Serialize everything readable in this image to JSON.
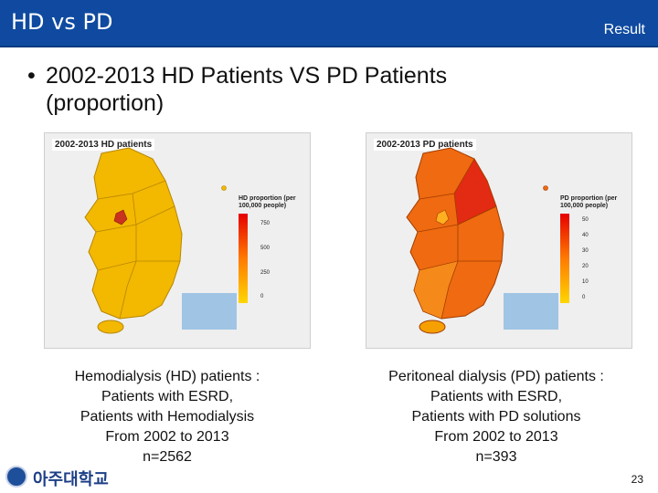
{
  "header": {
    "title": "HD vs PD",
    "section": "Result"
  },
  "bullet": {
    "text": "2002-2013 HD Patients VS PD Patients (proportion)"
  },
  "maps": {
    "hd": {
      "title": "2002-2013 HD patients",
      "legend_title": "HD proportion (per 100,000 people)",
      "ticks": [
        "750",
        "500",
        "250",
        "0"
      ]
    },
    "pd": {
      "title": "2002-2013 PD patients",
      "legend_title": "PD proportion (per 100,000 people)",
      "ticks": [
        "50",
        "40",
        "30",
        "20",
        "10",
        "0"
      ]
    }
  },
  "captions": {
    "left": [
      "Hemodialysis (HD) patients :",
      "Patients with ESRD,",
      "Patients with Hemodialysis",
      "From 2002 to 2013",
      "n=2562"
    ],
    "right": [
      "Peritoneal dialysis (PD) patients :",
      "Patients with ESRD,",
      "Patients with PD solutions",
      "From 2002 to 2013",
      "n=393"
    ]
  },
  "footer": {
    "logo_text": "아주대학교",
    "page_number": "23"
  },
  "colors": {
    "header_bg": "#0f4aa0",
    "hd_fill": "#f3b800",
    "pd_fill": "#ef6a10"
  }
}
